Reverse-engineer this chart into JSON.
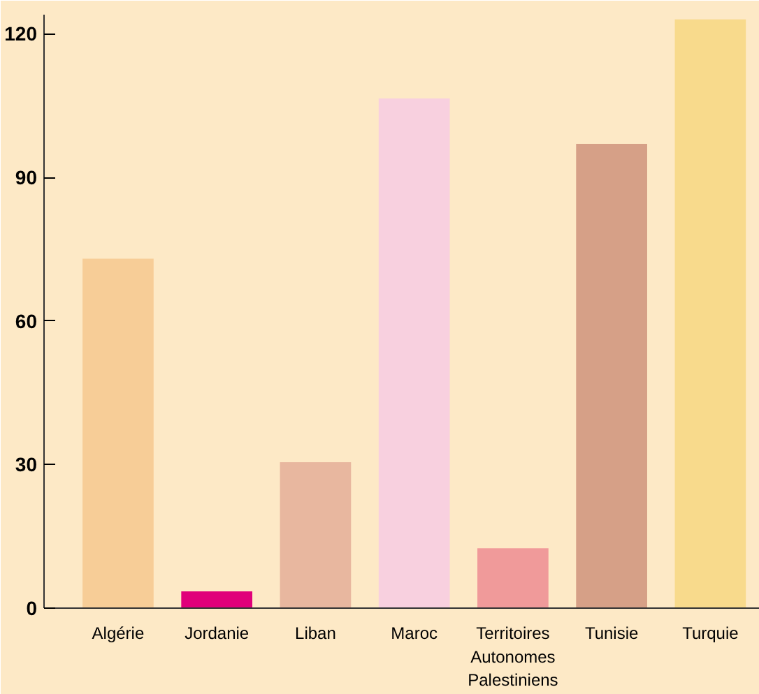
{
  "chart_data": {
    "type": "bar",
    "categories": [
      "Algérie",
      "Jordanie",
      "Liban",
      "Maroc",
      "Territoires\nAutonomes\nPalestiniens",
      "Tunisie",
      "Turquie"
    ],
    "values": [
      73,
      3.5,
      30.5,
      106.5,
      12.5,
      97,
      123
    ],
    "colors": [
      "#f7cd97",
      "#e0007a",
      "#e8b79f",
      "#f8d0df",
      "#f09a9a",
      "#d6a087",
      "#f8da8c"
    ],
    "ylim": [
      0,
      124
    ],
    "yticks": [
      0,
      30,
      60,
      90,
      120
    ],
    "grid": false
  }
}
